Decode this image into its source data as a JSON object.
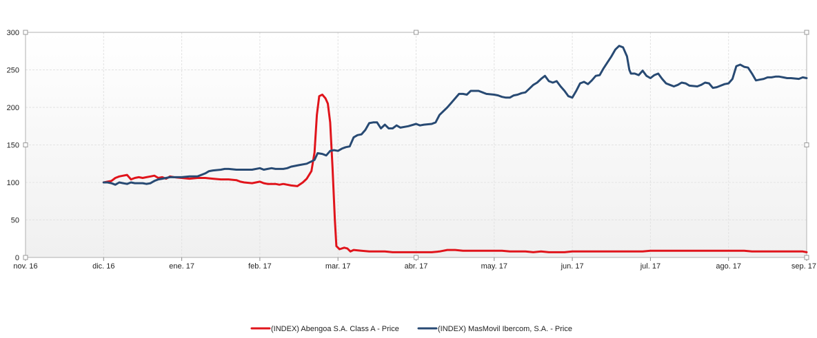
{
  "chart_data": {
    "type": "line",
    "title": "",
    "xlabel": "",
    "ylabel": "",
    "ylim": [
      0,
      300
    ],
    "y_ticks": [
      0,
      50,
      100,
      150,
      200,
      250,
      300
    ],
    "x_ticks": [
      {
        "label": "nov. 16",
        "x": 0
      },
      {
        "label": "dic. 16",
        "x": 1
      },
      {
        "label": "ene. 17",
        "x": 2
      },
      {
        "label": "feb. 17",
        "x": 3
      },
      {
        "label": "mar. 17",
        "x": 4
      },
      {
        "label": "abr. 17",
        "x": 5
      },
      {
        "label": "may. 17",
        "x": 6
      },
      {
        "label": "jun. 17",
        "x": 7
      },
      {
        "label": "jul. 17",
        "x": 8
      },
      {
        "label": "ago. 17",
        "x": 9
      },
      {
        "label": "sep. 17",
        "x": 10
      }
    ],
    "xlim": [
      0,
      10
    ],
    "grid": true,
    "legend_position": "bottom",
    "series": [
      {
        "name": "(INDEX) Abengoa S.A. Class A - Price",
        "color": "#e0141b",
        "points": [
          [
            1.0,
            100
          ],
          [
            1.05,
            101
          ],
          [
            1.1,
            102
          ],
          [
            1.15,
            106
          ],
          [
            1.2,
            108
          ],
          [
            1.25,
            109
          ],
          [
            1.3,
            110
          ],
          [
            1.35,
            104
          ],
          [
            1.4,
            106
          ],
          [
            1.45,
            107
          ],
          [
            1.5,
            106
          ],
          [
            1.55,
            107
          ],
          [
            1.6,
            108
          ],
          [
            1.65,
            109
          ],
          [
            1.7,
            106
          ],
          [
            1.75,
            107
          ],
          [
            1.8,
            105
          ],
          [
            1.85,
            108
          ],
          [
            1.9,
            107
          ],
          [
            2.0,
            106
          ],
          [
            2.1,
            105
          ],
          [
            2.2,
            106
          ],
          [
            2.3,
            106
          ],
          [
            2.4,
            105
          ],
          [
            2.5,
            104
          ],
          [
            2.6,
            104
          ],
          [
            2.7,
            103
          ],
          [
            2.75,
            101
          ],
          [
            2.8,
            100
          ],
          [
            2.9,
            99
          ],
          [
            3.0,
            101
          ],
          [
            3.05,
            99
          ],
          [
            3.1,
            98
          ],
          [
            3.2,
            98
          ],
          [
            3.25,
            97
          ],
          [
            3.3,
            98
          ],
          [
            3.4,
            96
          ],
          [
            3.48,
            95
          ],
          [
            3.55,
            100
          ],
          [
            3.6,
            105
          ],
          [
            3.66,
            115
          ],
          [
            3.7,
            140
          ],
          [
            3.73,
            190
          ],
          [
            3.76,
            215
          ],
          [
            3.8,
            217
          ],
          [
            3.84,
            212
          ],
          [
            3.87,
            205
          ],
          [
            3.9,
            180
          ],
          [
            3.93,
            120
          ],
          [
            3.96,
            50
          ],
          [
            3.98,
            15
          ],
          [
            4.02,
            11
          ],
          [
            4.08,
            13
          ],
          [
            4.12,
            12
          ],
          [
            4.16,
            8
          ],
          [
            4.2,
            10
          ],
          [
            4.3,
            9
          ],
          [
            4.4,
            8
          ],
          [
            4.5,
            8
          ],
          [
            4.6,
            8
          ],
          [
            4.7,
            7
          ],
          [
            4.8,
            7
          ],
          [
            4.9,
            7
          ],
          [
            5.0,
            7
          ],
          [
            5.1,
            7
          ],
          [
            5.2,
            7
          ],
          [
            5.3,
            8
          ],
          [
            5.4,
            10
          ],
          [
            5.5,
            10
          ],
          [
            5.6,
            9
          ],
          [
            5.7,
            9
          ],
          [
            5.8,
            9
          ],
          [
            5.9,
            9
          ],
          [
            6.0,
            9
          ],
          [
            6.1,
            9
          ],
          [
            6.2,
            8
          ],
          [
            6.3,
            8
          ],
          [
            6.4,
            8
          ],
          [
            6.5,
            7
          ],
          [
            6.6,
            8
          ],
          [
            6.7,
            7
          ],
          [
            6.8,
            7
          ],
          [
            6.9,
            7
          ],
          [
            7.0,
            8
          ],
          [
            7.1,
            8
          ],
          [
            7.2,
            8
          ],
          [
            7.3,
            8
          ],
          [
            7.4,
            8
          ],
          [
            7.5,
            8
          ],
          [
            7.6,
            8
          ],
          [
            7.7,
            8
          ],
          [
            7.8,
            8
          ],
          [
            7.9,
            8
          ],
          [
            8.0,
            9
          ],
          [
            8.1,
            9
          ],
          [
            8.2,
            9
          ],
          [
            8.3,
            9
          ],
          [
            8.4,
            9
          ],
          [
            8.5,
            9
          ],
          [
            8.6,
            9
          ],
          [
            8.7,
            9
          ],
          [
            8.8,
            9
          ],
          [
            8.9,
            9
          ],
          [
            9.0,
            9
          ],
          [
            9.1,
            9
          ],
          [
            9.2,
            9
          ],
          [
            9.3,
            8
          ],
          [
            9.4,
            8
          ],
          [
            9.5,
            8
          ],
          [
            9.6,
            8
          ],
          [
            9.7,
            8
          ],
          [
            9.8,
            8
          ],
          [
            9.9,
            8
          ],
          [
            9.95,
            8
          ],
          [
            10.0,
            7
          ]
        ]
      },
      {
        "name": "(INDEX) MasMovil Ibercom, S.A. - Price",
        "color": "#284a73",
        "points": [
          [
            1.0,
            100
          ],
          [
            1.05,
            100
          ],
          [
            1.1,
            99
          ],
          [
            1.15,
            97
          ],
          [
            1.2,
            100
          ],
          [
            1.25,
            99
          ],
          [
            1.3,
            98
          ],
          [
            1.35,
            100
          ],
          [
            1.4,
            99
          ],
          [
            1.45,
            99
          ],
          [
            1.5,
            99
          ],
          [
            1.55,
            98
          ],
          [
            1.6,
            99
          ],
          [
            1.65,
            102
          ],
          [
            1.7,
            104
          ],
          [
            1.75,
            105
          ],
          [
            1.8,
            106
          ],
          [
            1.85,
            107
          ],
          [
            1.9,
            107
          ],
          [
            2.0,
            107
          ],
          [
            2.1,
            108
          ],
          [
            2.2,
            108
          ],
          [
            2.3,
            112
          ],
          [
            2.35,
            115
          ],
          [
            2.4,
            116
          ],
          [
            2.5,
            117
          ],
          [
            2.55,
            118
          ],
          [
            2.6,
            118
          ],
          [
            2.7,
            117
          ],
          [
            2.8,
            117
          ],
          [
            2.9,
            117
          ],
          [
            3.0,
            119
          ],
          [
            3.05,
            117
          ],
          [
            3.1,
            118
          ],
          [
            3.15,
            119
          ],
          [
            3.2,
            118
          ],
          [
            3.3,
            118
          ],
          [
            3.35,
            119
          ],
          [
            3.4,
            121
          ],
          [
            3.5,
            123
          ],
          [
            3.6,
            125
          ],
          [
            3.7,
            130
          ],
          [
            3.74,
            139
          ],
          [
            3.8,
            138
          ],
          [
            3.85,
            136
          ],
          [
            3.9,
            142
          ],
          [
            3.95,
            143
          ],
          [
            4.0,
            142
          ],
          [
            4.05,
            145
          ],
          [
            4.1,
            147
          ],
          [
            4.15,
            148
          ],
          [
            4.2,
            160
          ],
          [
            4.25,
            163
          ],
          [
            4.3,
            164
          ],
          [
            4.35,
            170
          ],
          [
            4.4,
            179
          ],
          [
            4.45,
            180
          ],
          [
            4.5,
            180
          ],
          [
            4.55,
            172
          ],
          [
            4.6,
            177
          ],
          [
            4.65,
            172
          ],
          [
            4.7,
            172
          ],
          [
            4.75,
            176
          ],
          [
            4.8,
            173
          ],
          [
            4.9,
            175
          ],
          [
            5.0,
            178
          ],
          [
            5.05,
            176
          ],
          [
            5.1,
            177
          ],
          [
            5.2,
            178
          ],
          [
            5.25,
            180
          ],
          [
            5.3,
            190
          ],
          [
            5.4,
            200
          ],
          [
            5.45,
            206
          ],
          [
            5.5,
            212
          ],
          [
            5.55,
            218
          ],
          [
            5.6,
            218
          ],
          [
            5.65,
            217
          ],
          [
            5.7,
            222
          ],
          [
            5.75,
            222
          ],
          [
            5.8,
            222
          ],
          [
            5.85,
            220
          ],
          [
            5.9,
            218
          ],
          [
            6.0,
            217
          ],
          [
            6.05,
            216
          ],
          [
            6.1,
            214
          ],
          [
            6.15,
            213
          ],
          [
            6.2,
            213
          ],
          [
            6.25,
            216
          ],
          [
            6.3,
            217
          ],
          [
            6.35,
            219
          ],
          [
            6.4,
            220
          ],
          [
            6.45,
            225
          ],
          [
            6.5,
            230
          ],
          [
            6.55,
            233
          ],
          [
            6.6,
            238
          ],
          [
            6.65,
            242
          ],
          [
            6.7,
            235
          ],
          [
            6.75,
            233
          ],
          [
            6.8,
            235
          ],
          [
            6.85,
            228
          ],
          [
            6.9,
            222
          ],
          [
            6.95,
            215
          ],
          [
            7.0,
            213
          ],
          [
            7.05,
            222
          ],
          [
            7.1,
            232
          ],
          [
            7.15,
            234
          ],
          [
            7.2,
            231
          ],
          [
            7.25,
            236
          ],
          [
            7.3,
            242
          ],
          [
            7.35,
            243
          ],
          [
            7.4,
            252
          ],
          [
            7.45,
            260
          ],
          [
            7.5,
            268
          ],
          [
            7.55,
            277
          ],
          [
            7.6,
            282
          ],
          [
            7.65,
            280
          ],
          [
            7.7,
            268
          ],
          [
            7.73,
            250
          ],
          [
            7.75,
            245
          ],
          [
            7.8,
            245
          ],
          [
            7.85,
            243
          ],
          [
            7.9,
            249
          ],
          [
            7.95,
            242
          ],
          [
            8.0,
            239
          ],
          [
            8.05,
            243
          ],
          [
            8.1,
            245
          ],
          [
            8.15,
            238
          ],
          [
            8.2,
            232
          ],
          [
            8.25,
            230
          ],
          [
            8.3,
            228
          ],
          [
            8.35,
            230
          ],
          [
            8.4,
            233
          ],
          [
            8.45,
            232
          ],
          [
            8.5,
            229
          ],
          [
            8.6,
            228
          ],
          [
            8.65,
            230
          ],
          [
            8.7,
            233
          ],
          [
            8.75,
            232
          ],
          [
            8.8,
            226
          ],
          [
            8.85,
            227
          ],
          [
            8.9,
            229
          ],
          [
            8.95,
            231
          ],
          [
            9.0,
            232
          ],
          [
            9.05,
            238
          ],
          [
            9.1,
            255
          ],
          [
            9.15,
            257
          ],
          [
            9.2,
            254
          ],
          [
            9.25,
            253
          ],
          [
            9.3,
            245
          ],
          [
            9.35,
            236
          ],
          [
            9.4,
            237
          ],
          [
            9.45,
            238
          ],
          [
            9.5,
            240
          ],
          [
            9.55,
            240
          ],
          [
            9.6,
            241
          ],
          [
            9.65,
            241
          ],
          [
            9.7,
            240
          ],
          [
            9.75,
            239
          ],
          [
            9.8,
            239
          ],
          [
            9.9,
            238
          ],
          [
            9.95,
            240
          ],
          [
            10.0,
            239
          ]
        ]
      }
    ]
  }
}
